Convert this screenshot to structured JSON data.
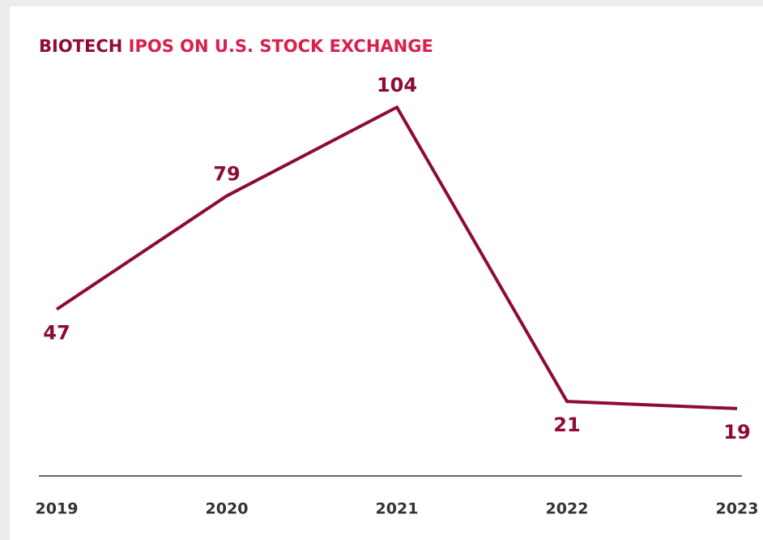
{
  "chart_data": {
    "type": "line",
    "title": {
      "highlight": "BIOTECH",
      "text": "IPOS ON U.S. STOCK EXCHANGE"
    },
    "categories": [
      "2019",
      "2020",
      "2021",
      "2022",
      "2023"
    ],
    "series": [
      {
        "color": "#8e0b38",
        "values": [
          47,
          79,
          104,
          21,
          19
        ]
      }
    ],
    "ylim": [
      0,
      110
    ]
  }
}
